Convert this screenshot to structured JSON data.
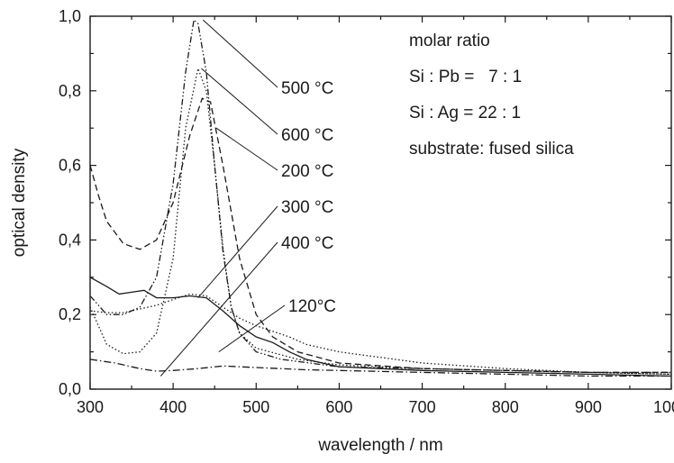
{
  "chart_data": {
    "type": "line",
    "xlabel": "wavelength / nm",
    "ylabel": "optical density",
    "xlim": [
      300,
      1000
    ],
    "ylim": [
      0.0,
      1.0
    ],
    "xticks": [
      300,
      400,
      500,
      600,
      700,
      800,
      900,
      1000
    ],
    "xtick_labels": [
      "300",
      "400",
      "500",
      "600",
      "700",
      "800",
      "900",
      "1000"
    ],
    "yticks": [
      0.0,
      0.2,
      0.4,
      0.6,
      0.8,
      1.0
    ],
    "ytick_labels": [
      "0,0",
      "0,2",
      "0,4",
      "0,6",
      "0,8",
      "1,0"
    ],
    "grid": false,
    "annotation_lines": [
      "molar ratio",
      "Si : Pb =   7 : 1",
      "Si : Ag = 22 : 1",
      "substrate: fused silica"
    ],
    "series": [
      {
        "name": "500 °C",
        "style": "dash-dot-dot",
        "points": [
          [
            300,
            0.25
          ],
          [
            320,
            0.2
          ],
          [
            340,
            0.2
          ],
          [
            360,
            0.22
          ],
          [
            380,
            0.3
          ],
          [
            400,
            0.55
          ],
          [
            415,
            0.85
          ],
          [
            425,
            0.99
          ],
          [
            430,
            0.98
          ],
          [
            440,
            0.85
          ],
          [
            450,
            0.6
          ],
          [
            460,
            0.37
          ],
          [
            470,
            0.22
          ],
          [
            480,
            0.15
          ],
          [
            500,
            0.1
          ],
          [
            530,
            0.08
          ],
          [
            600,
            0.06
          ],
          [
            700,
            0.055
          ],
          [
            800,
            0.05
          ],
          [
            900,
            0.045
          ],
          [
            1000,
            0.045
          ]
        ]
      },
      {
        "name": "600 °C",
        "style": "dotted",
        "points": [
          [
            300,
            0.22
          ],
          [
            310,
            0.17
          ],
          [
            320,
            0.12
          ],
          [
            340,
            0.095
          ],
          [
            360,
            0.1
          ],
          [
            380,
            0.15
          ],
          [
            400,
            0.35
          ],
          [
            415,
            0.7
          ],
          [
            430,
            0.86
          ],
          [
            440,
            0.8
          ],
          [
            450,
            0.6
          ],
          [
            460,
            0.38
          ],
          [
            470,
            0.22
          ],
          [
            480,
            0.15
          ],
          [
            500,
            0.11
          ],
          [
            550,
            0.08
          ],
          [
            600,
            0.065
          ],
          [
            700,
            0.055
          ],
          [
            800,
            0.05
          ],
          [
            900,
            0.045
          ],
          [
            1000,
            0.04
          ]
        ]
      },
      {
        "name": "200 °C",
        "style": "dashed",
        "points": [
          [
            300,
            0.6
          ],
          [
            310,
            0.52
          ],
          [
            320,
            0.45
          ],
          [
            340,
            0.39
          ],
          [
            360,
            0.375
          ],
          [
            380,
            0.4
          ],
          [
            400,
            0.5
          ],
          [
            420,
            0.68
          ],
          [
            435,
            0.78
          ],
          [
            445,
            0.77
          ],
          [
            460,
            0.6
          ],
          [
            480,
            0.35
          ],
          [
            500,
            0.2
          ],
          [
            520,
            0.14
          ],
          [
            550,
            0.1
          ],
          [
            600,
            0.07
          ],
          [
            700,
            0.055
          ],
          [
            800,
            0.05
          ],
          [
            900,
            0.045
          ],
          [
            1000,
            0.045
          ]
        ]
      },
      {
        "name": "300 °C",
        "style": "solid",
        "points": [
          [
            300,
            0.3
          ],
          [
            320,
            0.275
          ],
          [
            335,
            0.255
          ],
          [
            350,
            0.26
          ],
          [
            365,
            0.265
          ],
          [
            380,
            0.245
          ],
          [
            400,
            0.245
          ],
          [
            420,
            0.25
          ],
          [
            440,
            0.245
          ],
          [
            460,
            0.21
          ],
          [
            480,
            0.17
          ],
          [
            500,
            0.14
          ],
          [
            520,
            0.125
          ],
          [
            540,
            0.1
          ],
          [
            560,
            0.08
          ],
          [
            600,
            0.06
          ],
          [
            700,
            0.05
          ],
          [
            800,
            0.045
          ],
          [
            900,
            0.04
          ],
          [
            1000,
            0.035
          ]
        ]
      },
      {
        "name": "400 °C",
        "style": "dotted",
        "points": [
          [
            300,
            0.21
          ],
          [
            320,
            0.205
          ],
          [
            340,
            0.205
          ],
          [
            360,
            0.215
          ],
          [
            380,
            0.225
          ],
          [
            400,
            0.24
          ],
          [
            420,
            0.255
          ],
          [
            440,
            0.25
          ],
          [
            460,
            0.22
          ],
          [
            480,
            0.19
          ],
          [
            500,
            0.17
          ],
          [
            520,
            0.155
          ],
          [
            540,
            0.14
          ],
          [
            560,
            0.12
          ],
          [
            600,
            0.1
          ],
          [
            700,
            0.07
          ],
          [
            800,
            0.055
          ],
          [
            900,
            0.045
          ],
          [
            1000,
            0.04
          ]
        ]
      },
      {
        "name": "120°C",
        "style": "dash-dot",
        "points": [
          [
            300,
            0.08
          ],
          [
            330,
            0.07
          ],
          [
            360,
            0.055
          ],
          [
            380,
            0.048
          ],
          [
            400,
            0.05
          ],
          [
            430,
            0.055
          ],
          [
            460,
            0.062
          ],
          [
            500,
            0.058
          ],
          [
            560,
            0.052
          ],
          [
            600,
            0.05
          ],
          [
            700,
            0.045
          ],
          [
            800,
            0.04
          ],
          [
            900,
            0.035
          ],
          [
            1000,
            0.035
          ]
        ]
      }
    ],
    "labels": [
      {
        "text": "500 °C",
        "series": "500 °C",
        "anchor": [
          436,
          0.99
        ]
      },
      {
        "text": "600 °C",
        "series": "600 °C",
        "anchor": [
          434,
          0.86
        ]
      },
      {
        "text": "200 °C",
        "series": "200 °C",
        "anchor": [
          452,
          0.7
        ]
      },
      {
        "text": "300 °C",
        "series": "300 °C",
        "anchor": [
          430,
          0.245
        ]
      },
      {
        "text": "400 °C",
        "series": "400 °C",
        "anchor": [
          385,
          0.035
        ]
      },
      {
        "text": "120°C",
        "series": "120°C",
        "anchor": [
          455,
          0.1
        ]
      }
    ]
  }
}
